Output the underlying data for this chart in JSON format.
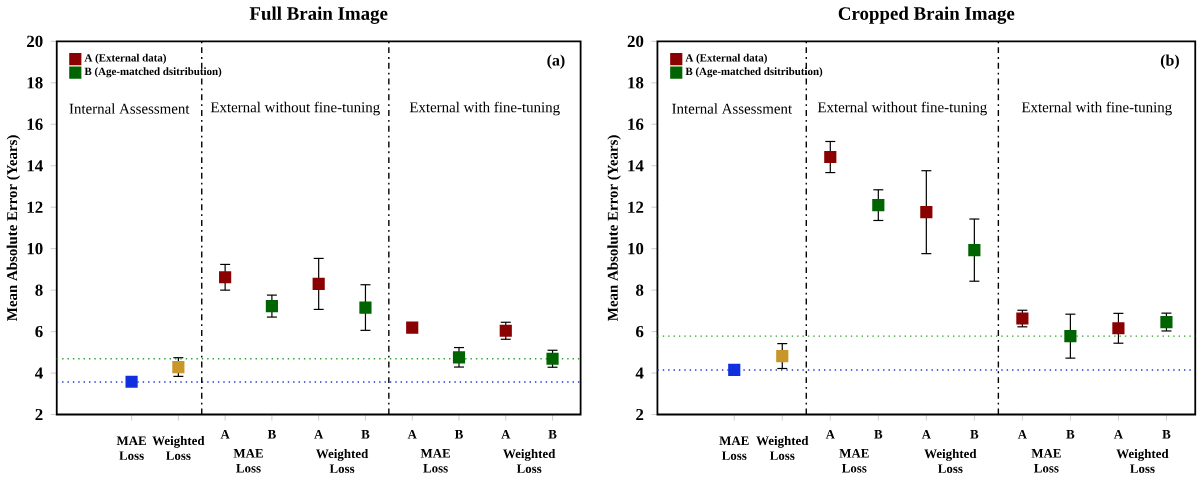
{
  "chart_data": [
    {
      "type": "scatter",
      "title": "Full Brain Image",
      "ylabel": "Mean Absolute Error (Years)",
      "categories": [
        "MAE Loss",
        "Weighted Loss",
        "A",
        "B",
        "A",
        "B",
        "A",
        "B",
        "A",
        "B"
      ],
      "series": [
        {
          "name": "A (External data)",
          "color": "#8b0000",
          "values": [
            null,
            null,
            8.62,
            null,
            8.3,
            null,
            6.19,
            null,
            6.04,
            null
          ],
          "errors": [
            null,
            null,
            0.62,
            null,
            1.23,
            null,
            null,
            null,
            0.41,
            null
          ]
        },
        {
          "name": "B (Age-matched dsitribution)",
          "color": "#006400",
          "values": [
            null,
            null,
            null,
            7.23,
            null,
            7.16,
            null,
            4.76,
            null,
            4.69
          ],
          "errors": [
            null,
            null,
            null,
            0.53,
            null,
            1.1,
            null,
            0.47,
            null,
            0.41
          ]
        },
        {
          "color": "#1030e0",
          "values": [
            3.58,
            null,
            null,
            null,
            null,
            null,
            null,
            null,
            null,
            null
          ]
        },
        {
          "color": "#c8962a",
          "values": [
            null,
            4.29,
            null,
            null,
            null,
            null,
            null,
            null,
            null,
            null
          ],
          "errors": [
            null,
            0.45,
            null,
            null,
            null,
            null,
            null,
            null,
            null,
            null
          ]
        }
      ],
      "ylim": [
        2,
        20
      ],
      "yticks": [
        2,
        4,
        6,
        8,
        10,
        12,
        14,
        16,
        18,
        20
      ],
      "marker": "square",
      "legend": "top left",
      "grid": false,
      "ref_lines": [
        {
          "axis": "y",
          "value": 4.69,
          "color": "#2ca02c",
          "line_style": "dotted"
        },
        {
          "axis": "y",
          "value": 3.57,
          "color": "#2233dd",
          "line_style": "dotted"
        }
      ],
      "annotations": [
        "Internal Assessment",
        "External without fine-tuning",
        "External with fine-tuning",
        "(a)",
        "MAE Loss",
        "Weighted Loss",
        "MAE Loss",
        "Weighted Loss"
      ]
    },
    {
      "type": "scatter",
      "title": "Cropped Brain Image",
      "ylabel": "Mean Absolute Error (Years)",
      "categories": [
        "MAE Loss",
        "Weighted Loss",
        "A",
        "B",
        "A",
        "B",
        "A",
        "B",
        "A",
        "B"
      ],
      "series": [
        {
          "name": "A (External data)",
          "color": "#8b0000",
          "values": [
            null,
            null,
            14.42,
            null,
            11.76,
            null,
            6.63,
            null,
            6.16,
            null
          ],
          "errors": [
            null,
            null,
            0.75,
            null,
            2.0,
            null,
            0.4,
            null,
            0.72,
            null
          ]
        },
        {
          "name": "B (Age-matched dsitribution)",
          "color": "#006400",
          "values": [
            null,
            null,
            null,
            12.1,
            null,
            9.93,
            null,
            5.78,
            null,
            6.46
          ],
          "errors": [
            null,
            null,
            null,
            0.74,
            null,
            1.5,
            null,
            1.06,
            null,
            0.43
          ]
        },
        {
          "color": "#1030e0",
          "values": [
            4.15,
            null,
            null,
            null,
            null,
            null,
            null,
            null,
            null,
            null
          ]
        },
        {
          "color": "#c8962a",
          "values": [
            null,
            4.82,
            null,
            null,
            null,
            null,
            null,
            null,
            null,
            null
          ],
          "errors": [
            null,
            0.6,
            null,
            null,
            null,
            null,
            null,
            null,
            null,
            null
          ]
        }
      ],
      "ylim": [
        2,
        20
      ],
      "yticks": [
        2,
        4,
        6,
        8,
        10,
        12,
        14,
        16,
        18,
        20
      ],
      "marker": "square",
      "legend": "top left",
      "grid": false,
      "ref_lines": [
        {
          "axis": "y",
          "value": 5.78,
          "color": "#2ca02c",
          "line_style": "dotted"
        },
        {
          "axis": "y",
          "value": 4.15,
          "color": "#2233dd",
          "line_style": "dotted"
        }
      ],
      "annotations": [
        "Internal Assessment",
        "External without fine-tuning",
        "External with fine-tuning",
        "(b)",
        "MAE Loss",
        "Weighted Loss",
        "MAE Loss",
        "Weighted Loss"
      ]
    }
  ]
}
